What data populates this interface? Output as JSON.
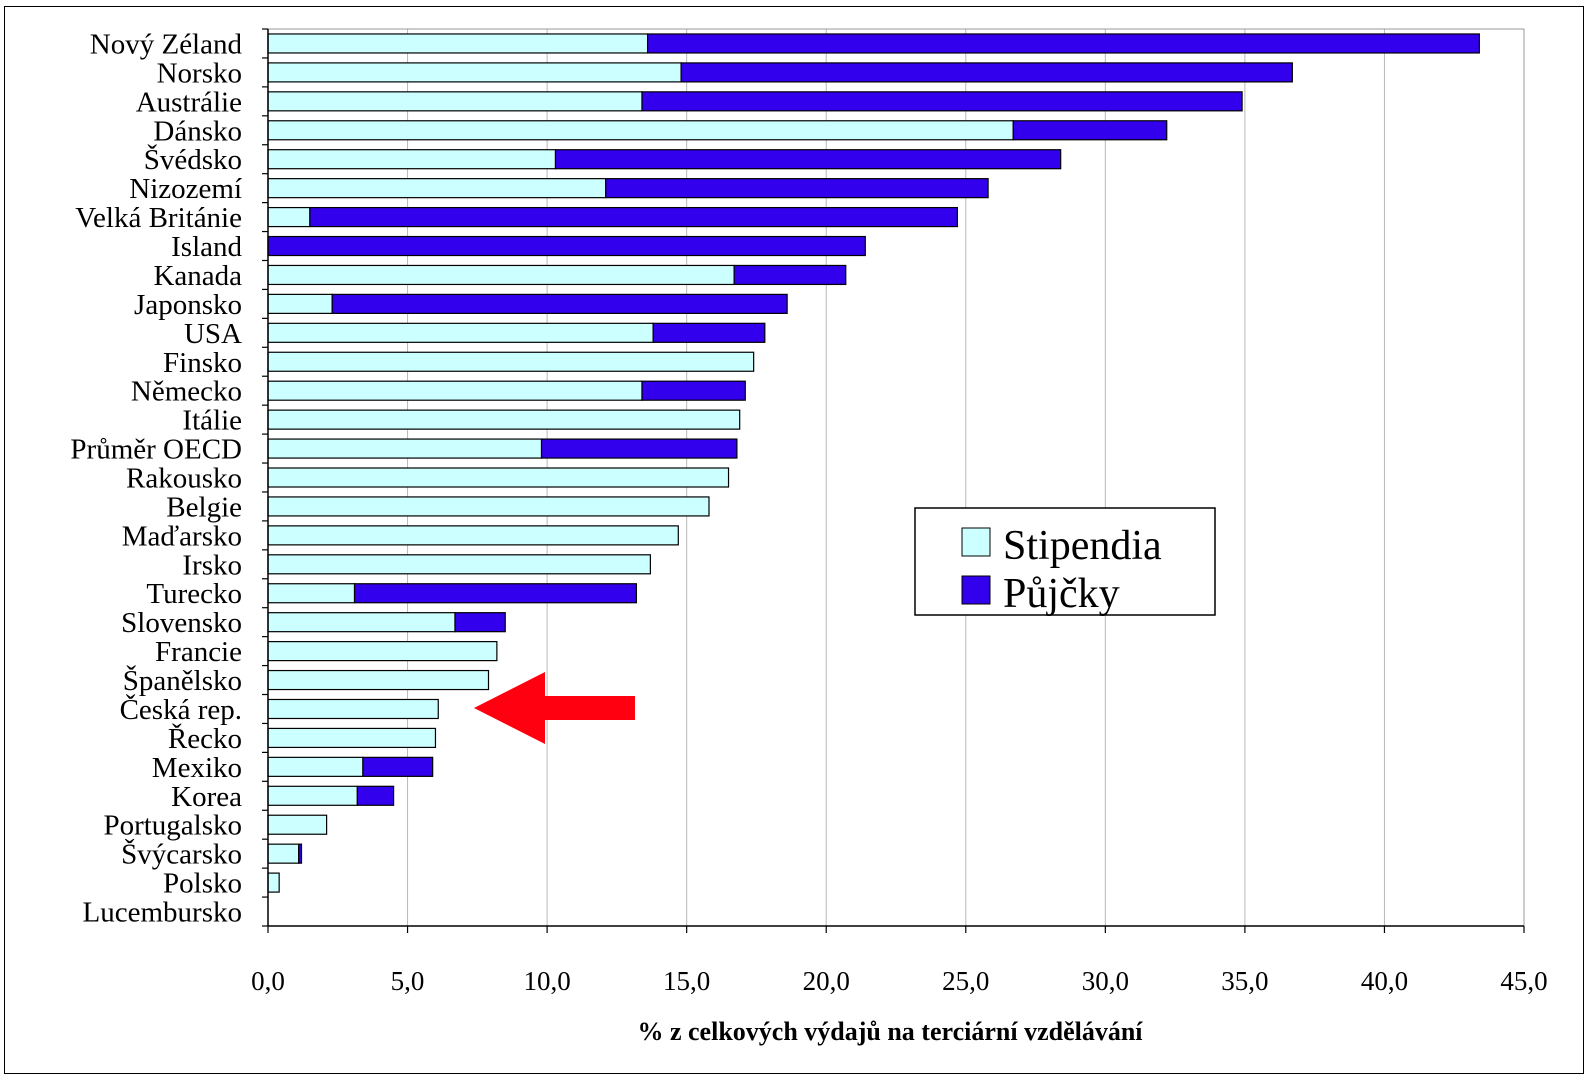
{
  "chart_data": {
    "type": "bar",
    "orientation": "horizontal",
    "stacked": true,
    "title": "",
    "xlabel": "% z celkových výdajů na terciární vzdělávání",
    "ylabel": "",
    "xlim": [
      0,
      45
    ],
    "xticks": [
      "0,0",
      "5,0",
      "10,0",
      "15,0",
      "20,0",
      "25,0",
      "30,0",
      "35,0",
      "40,0",
      "45,0"
    ],
    "xtick_values": [
      0,
      5,
      10,
      15,
      20,
      25,
      30,
      35,
      40,
      45
    ],
    "grid": "vertical",
    "legend_position": "center-right",
    "categories": [
      "Nový Zéland",
      "Norsko",
      "Austrálie",
      "Dánsko",
      "Švédsko",
      "Nizozemí",
      "Velká Británie",
      "Island",
      "Kanada",
      "Japonsko",
      "USA",
      "Finsko",
      "Německo",
      "Itálie",
      "Průměr OECD",
      "Rakousko",
      "Belgie",
      "Maďarsko",
      "Irsko",
      "Turecko",
      "Slovensko",
      "Francie",
      "Španělsko",
      "Česká rep.",
      "Řecko",
      "Mexiko",
      "Korea",
      "Portugalsko",
      "Švýcarsko",
      "Polsko",
      "Lucembursko"
    ],
    "series": [
      {
        "name": "Stipendia",
        "color": "#ccffff",
        "values": [
          13.6,
          14.8,
          13.4,
          26.7,
          10.3,
          12.1,
          1.5,
          0.0,
          16.7,
          2.3,
          13.8,
          17.4,
          13.4,
          16.9,
          9.8,
          16.5,
          15.8,
          14.7,
          13.7,
          3.1,
          6.7,
          8.2,
          7.9,
          6.1,
          6.0,
          3.4,
          3.2,
          2.1,
          1.1,
          0.4,
          0.0
        ]
      },
      {
        "name": "Půjčky",
        "color": "#3300ee",
        "values": [
          29.8,
          21.9,
          21.5,
          5.5,
          18.1,
          13.7,
          23.2,
          21.4,
          4.0,
          16.3,
          4.0,
          0.0,
          3.7,
          0.0,
          7.0,
          0.0,
          0.0,
          0.0,
          0.0,
          10.1,
          1.8,
          0.0,
          0.0,
          0.0,
          0.0,
          2.5,
          1.3,
          0.0,
          0.1,
          0.0,
          0.0
        ]
      }
    ],
    "legend": {
      "entries": [
        "Stipendia",
        "Půjčky"
      ]
    },
    "annotation": {
      "type": "arrow",
      "color": "#ff0011",
      "points_to": "Česká rep."
    }
  }
}
